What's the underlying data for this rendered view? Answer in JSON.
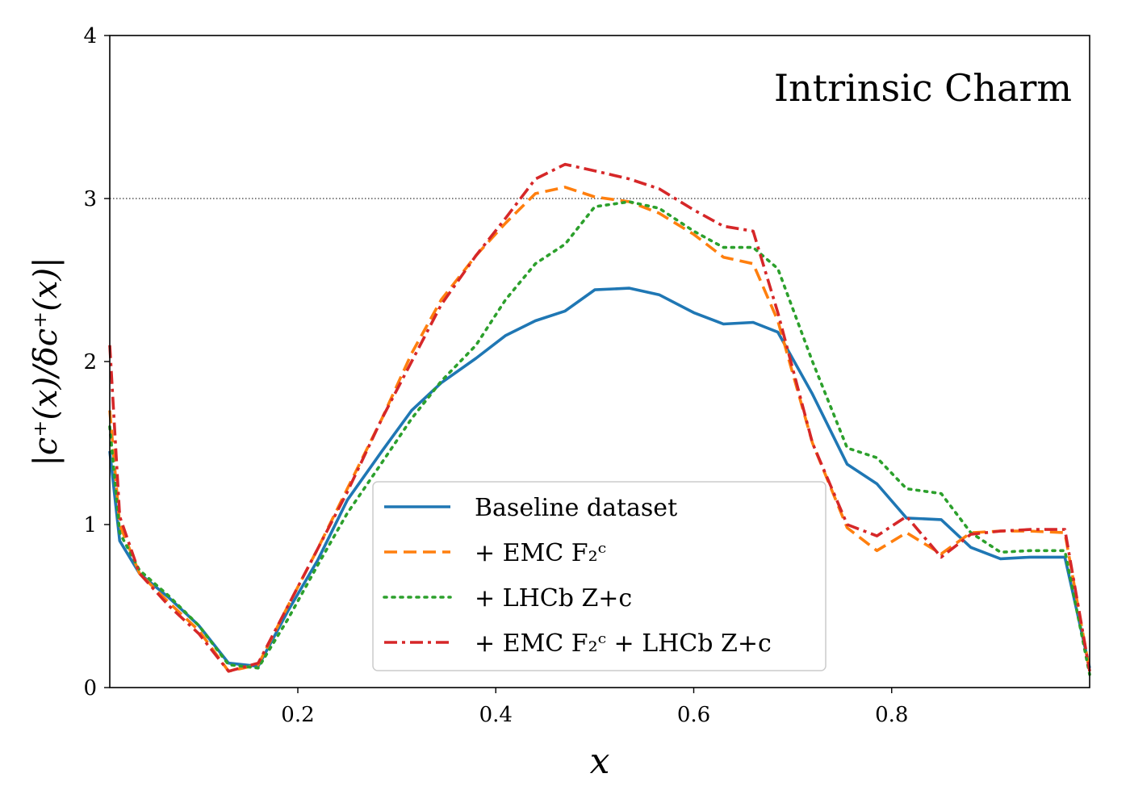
{
  "chart_data": {
    "type": "line",
    "title": "",
    "annotation": "Intrinsic Charm",
    "xlabel": "x",
    "ylabel": "|c⁺(x)/δc⁺(x)|",
    "xlim": [
      0.01,
      1.0
    ],
    "ylim": [
      0,
      4
    ],
    "x_ticks": [
      0.2,
      0.4,
      0.6,
      0.8
    ],
    "x_tick_labels": [
      "0.2",
      "0.4",
      "0.6",
      "0.8"
    ],
    "y_ticks": [
      0,
      1,
      2,
      3,
      4
    ],
    "y_tick_labels": [
      "0",
      "1",
      "2",
      "3",
      "4"
    ],
    "reference_line": {
      "y": 3,
      "style": "dotted",
      "color": "#000000"
    },
    "grid": false,
    "legend_position": "lower-center",
    "series": [
      {
        "name": "Baseline dataset",
        "color": "#1f77b4",
        "style": "solid",
        "x": [
          0.01,
          0.02,
          0.04,
          0.07,
          0.1,
          0.13,
          0.16,
          0.19,
          0.22,
          0.25,
          0.285,
          0.315,
          0.345,
          0.38,
          0.41,
          0.44,
          0.47,
          0.5,
          0.535,
          0.565,
          0.6,
          0.63,
          0.66,
          0.685,
          0.72,
          0.755,
          0.785,
          0.815,
          0.85,
          0.88,
          0.91,
          0.94,
          0.975,
          1.0
        ],
        "y": [
          1.45,
          0.9,
          0.7,
          0.55,
          0.38,
          0.15,
          0.13,
          0.47,
          0.78,
          1.15,
          1.45,
          1.7,
          1.87,
          2.02,
          2.16,
          2.25,
          2.31,
          2.44,
          2.45,
          2.41,
          2.3,
          2.23,
          2.24,
          2.18,
          1.8,
          1.37,
          1.25,
          1.04,
          1.03,
          0.86,
          0.79,
          0.8,
          0.8,
          0.12
        ]
      },
      {
        "name": "+ EMC F₂ᶜ",
        "color": "#ff7f0e",
        "style": "dashed",
        "x": [
          0.01,
          0.02,
          0.04,
          0.07,
          0.1,
          0.13,
          0.16,
          0.19,
          0.22,
          0.25,
          0.285,
          0.315,
          0.345,
          0.38,
          0.41,
          0.44,
          0.47,
          0.5,
          0.535,
          0.565,
          0.6,
          0.63,
          0.66,
          0.685,
          0.72,
          0.755,
          0.785,
          0.815,
          0.85,
          0.88,
          0.91,
          0.94,
          0.975,
          1.0
        ],
        "y": [
          1.7,
          1.0,
          0.7,
          0.52,
          0.35,
          0.1,
          0.14,
          0.5,
          0.85,
          1.22,
          1.65,
          2.05,
          2.38,
          2.65,
          2.85,
          3.03,
          3.07,
          3.01,
          2.98,
          2.91,
          2.78,
          2.64,
          2.6,
          2.25,
          1.5,
          0.98,
          0.84,
          0.95,
          0.82,
          0.95,
          0.96,
          0.96,
          0.95,
          0.1
        ]
      },
      {
        "name": "+ LHCb Z+c",
        "color": "#2ca02c",
        "style": "dotted",
        "x": [
          0.01,
          0.02,
          0.04,
          0.07,
          0.1,
          0.13,
          0.16,
          0.19,
          0.22,
          0.25,
          0.285,
          0.315,
          0.345,
          0.38,
          0.41,
          0.44,
          0.47,
          0.5,
          0.535,
          0.565,
          0.6,
          0.63,
          0.66,
          0.685,
          0.72,
          0.755,
          0.785,
          0.815,
          0.85,
          0.88,
          0.91,
          0.94,
          0.975,
          1.0
        ],
        "y": [
          1.6,
          0.95,
          0.72,
          0.56,
          0.38,
          0.14,
          0.12,
          0.42,
          0.75,
          1.07,
          1.38,
          1.65,
          1.88,
          2.1,
          2.38,
          2.6,
          2.72,
          2.95,
          2.98,
          2.94,
          2.8,
          2.7,
          2.7,
          2.57,
          2.0,
          1.47,
          1.41,
          1.22,
          1.19,
          0.95,
          0.83,
          0.84,
          0.84,
          0.08
        ]
      },
      {
        "name": "+ EMC F₂ᶜ + LHCb Z+c",
        "color": "#d62728",
        "style": "dashdot",
        "x": [
          0.01,
          0.02,
          0.04,
          0.07,
          0.1,
          0.13,
          0.16,
          0.19,
          0.22,
          0.25,
          0.285,
          0.315,
          0.345,
          0.38,
          0.41,
          0.44,
          0.47,
          0.5,
          0.535,
          0.565,
          0.6,
          0.63,
          0.66,
          0.685,
          0.72,
          0.755,
          0.785,
          0.815,
          0.85,
          0.88,
          0.91,
          0.94,
          0.975,
          1.0
        ],
        "y": [
          2.1,
          1.05,
          0.7,
          0.5,
          0.33,
          0.1,
          0.15,
          0.5,
          0.85,
          1.2,
          1.65,
          2.0,
          2.35,
          2.65,
          2.88,
          3.12,
          3.21,
          3.17,
          3.12,
          3.06,
          2.93,
          2.83,
          2.8,
          2.3,
          1.5,
          1.0,
          0.93,
          1.05,
          0.8,
          0.94,
          0.96,
          0.97,
          0.97,
          0.1
        ]
      }
    ]
  }
}
